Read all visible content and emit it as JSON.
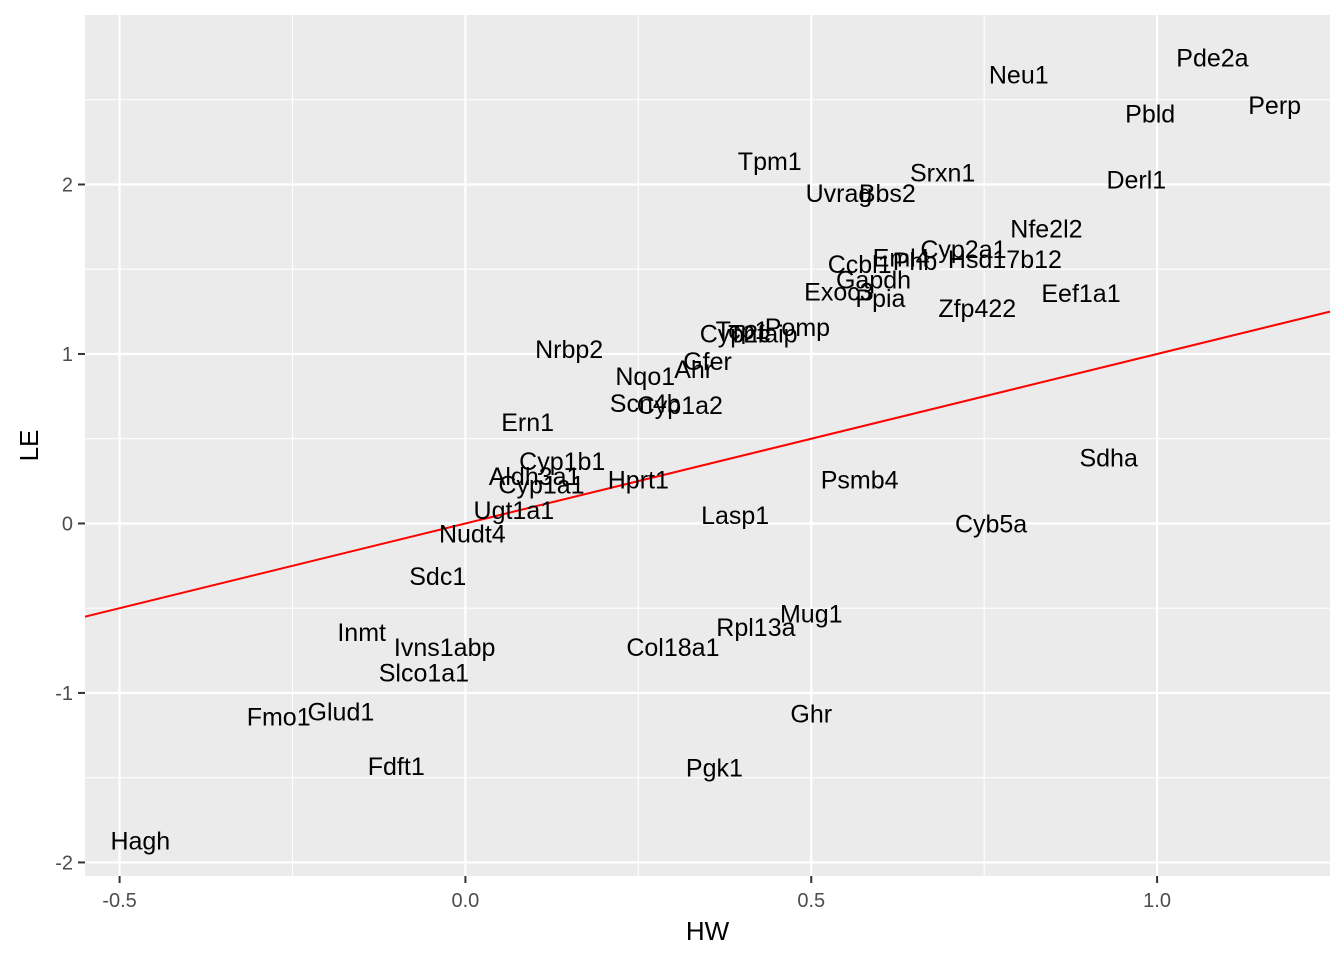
{
  "chart_data": {
    "type": "scatter",
    "title": "",
    "xlabel": "HW",
    "ylabel": "LE",
    "xlim": [
      -0.55,
      1.25
    ],
    "ylim": [
      -2.08,
      3.0
    ],
    "x_ticks": [
      -0.5,
      0.0,
      0.5,
      1.0
    ],
    "x_tick_labels": [
      "-0.5",
      "0.0",
      "0.5",
      "1.0"
    ],
    "y_ticks": [
      -2,
      -1,
      0,
      1,
      2
    ],
    "y_tick_labels": [
      "-2",
      "-1",
      "0",
      "1",
      "2"
    ],
    "grid": true,
    "reference_line": {
      "slope": 1.0,
      "intercept": 0.0,
      "color": "#ff0000"
    },
    "colors": {
      "panel": "#ebebeb",
      "grid": "#ffffff",
      "tick": "#4d4d4d"
    },
    "points": [
      {
        "label": "Pde2a",
        "x": 1.08,
        "y": 2.75
      },
      {
        "label": "Neu1",
        "x": 0.8,
        "y": 2.65
      },
      {
        "label": "Perp",
        "x": 1.17,
        "y": 2.47
      },
      {
        "label": "Pbld",
        "x": 0.99,
        "y": 2.42
      },
      {
        "label": "Tpm1",
        "x": 0.44,
        "y": 2.14
      },
      {
        "label": "Srxn1",
        "x": 0.69,
        "y": 2.07
      },
      {
        "label": "Derl1",
        "x": 0.97,
        "y": 2.03
      },
      {
        "label": "Uvrag",
        "x": 0.54,
        "y": 1.95
      },
      {
        "label": "Bbs2",
        "x": 0.61,
        "y": 1.95
      },
      {
        "label": "Nfe2l2",
        "x": 0.84,
        "y": 1.74
      },
      {
        "label": "Cyp2a1",
        "x": 0.72,
        "y": 1.62
      },
      {
        "label": "Hsd17b12",
        "x": 0.78,
        "y": 1.56
      },
      {
        "label": "Eml4",
        "x": 0.63,
        "y": 1.57
      },
      {
        "label": "Phb",
        "x": 0.65,
        "y": 1.55
      },
      {
        "label": "Ccbl1",
        "x": 0.57,
        "y": 1.53
      },
      {
        "label": "Gapdh",
        "x": 0.59,
        "y": 1.44
      },
      {
        "label": "Exoc3",
        "x": 0.54,
        "y": 1.37
      },
      {
        "label": "Ppia",
        "x": 0.6,
        "y": 1.33
      },
      {
        "label": "Eef1a1",
        "x": 0.89,
        "y": 1.36
      },
      {
        "label": "Zfp422",
        "x": 0.74,
        "y": 1.27
      },
      {
        "label": "Pomp",
        "x": 0.48,
        "y": 1.16
      },
      {
        "label": "Tcp1",
        "x": 0.4,
        "y": 1.14
      },
      {
        "label": "Cyp2c",
        "x": 0.39,
        "y": 1.12
      },
      {
        "label": "Tnfaip",
        "x": 0.43,
        "y": 1.12
      },
      {
        "label": "Nrbp2",
        "x": 0.15,
        "y": 1.03
      },
      {
        "label": "Gfer",
        "x": 0.35,
        "y": 0.96
      },
      {
        "label": "Ahr",
        "x": 0.33,
        "y": 0.91
      },
      {
        "label": "Nqo1",
        "x": 0.26,
        "y": 0.87
      },
      {
        "label": "Scn4b",
        "x": 0.26,
        "y": 0.71
      },
      {
        "label": "Cyp1a2",
        "x": 0.31,
        "y": 0.7
      },
      {
        "label": "Ern1",
        "x": 0.09,
        "y": 0.6
      },
      {
        "label": "Cyp1b1",
        "x": 0.14,
        "y": 0.37
      },
      {
        "label": "Aldh3a1",
        "x": 0.1,
        "y": 0.28
      },
      {
        "label": "Hprt1",
        "x": 0.25,
        "y": 0.26
      },
      {
        "label": "Cyp1a1",
        "x": 0.11,
        "y": 0.23
      },
      {
        "label": "Ugt1a1",
        "x": 0.07,
        "y": 0.08
      },
      {
        "label": "Nudt4",
        "x": 0.01,
        "y": -0.06
      },
      {
        "label": "Lasp1",
        "x": 0.39,
        "y": 0.05
      },
      {
        "label": "Psmb4",
        "x": 0.57,
        "y": 0.26
      },
      {
        "label": "Sdha",
        "x": 0.93,
        "y": 0.39
      },
      {
        "label": "Cyb5a",
        "x": 0.76,
        "y": 0.0
      },
      {
        "label": "Sdc1",
        "x": -0.04,
        "y": -0.31
      },
      {
        "label": "Inmt",
        "x": -0.15,
        "y": -0.64
      },
      {
        "label": "Ivns1abp",
        "x": -0.03,
        "y": -0.73
      },
      {
        "label": "Mug1",
        "x": 0.5,
        "y": -0.53
      },
      {
        "label": "Rpl13a",
        "x": 0.42,
        "y": -0.61
      },
      {
        "label": "Col18a1",
        "x": 0.3,
        "y": -0.73
      },
      {
        "label": "Slco1a1",
        "x": -0.06,
        "y": -0.88
      },
      {
        "label": "Fmo1",
        "x": -0.27,
        "y": -1.14
      },
      {
        "label": "Glud1",
        "x": -0.18,
        "y": -1.11
      },
      {
        "label": "Ghr",
        "x": 0.5,
        "y": -1.12
      },
      {
        "label": "Fdft1",
        "x": -0.1,
        "y": -1.43
      },
      {
        "label": "Pgk1",
        "x": 0.36,
        "y": -1.44
      },
      {
        "label": "Hagh",
        "x": -0.47,
        "y": -1.87
      }
    ]
  }
}
